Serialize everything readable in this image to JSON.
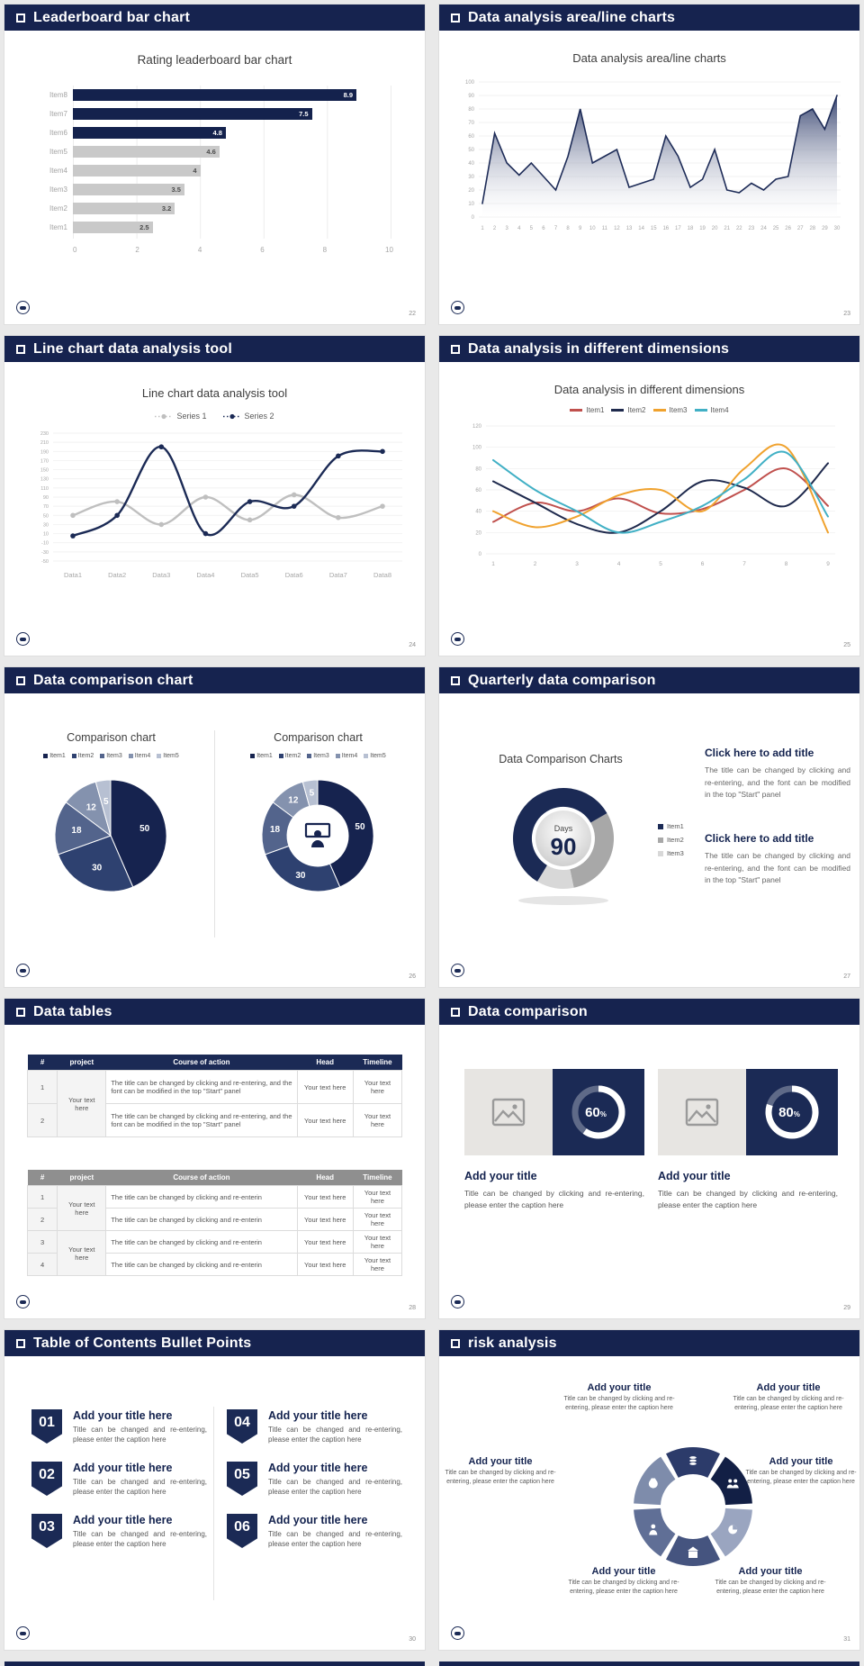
{
  "slides": {
    "s1": {
      "header": "Leaderboard bar chart",
      "page": "22",
      "chart_title": "Rating leaderboard bar chart"
    },
    "s2": {
      "header": "Data analysis area/line charts",
      "page": "23",
      "chart_title": "Data analysis area/line charts"
    },
    "s3": {
      "header": "Line chart data analysis tool",
      "page": "24",
      "chart_title": "Line chart data analysis tool"
    },
    "s4": {
      "header": "Data analysis in different dimensions",
      "page": "25",
      "chart_title": "Data analysis in different dimensions"
    },
    "s5": {
      "header": "Data comparison chart",
      "page": "26",
      "chart_title_left": "Comparison chart",
      "chart_title_right": "Comparison chart"
    },
    "s6": {
      "header": "Quarterly data comparison",
      "page": "27",
      "chart_label": "Data Comparison Charts",
      "days_label": "Days",
      "days_value": "90",
      "blocks": [
        {
          "title": "Click here to add title",
          "body": "The title can be changed by clicking and re-entering, and the font can be modified in the top \"Start\" panel"
        },
        {
          "title": "Click here to add title",
          "body": "The title can be changed by clicking and re-entering, and the font can be modified in the top \"Start\" panel"
        }
      ]
    },
    "s7": {
      "header": "Data tables",
      "page": "28",
      "tables": {
        "headers": [
          "#",
          "project",
          "Course of action",
          "Head",
          "Timeline"
        ],
        "your_text": "Your text here",
        "t1_course": "The title can be changed by clicking and re-entering, and the font can be modified in the top \"Start\" panel",
        "t2_course": "The title can be changed by clicking and re-enterin",
        "t1_row_nums": [
          "1",
          "2"
        ],
        "t2_row_nums": [
          "1",
          "2",
          "3",
          "4"
        ]
      }
    },
    "s8": {
      "header": "Data comparison",
      "page": "29",
      "card_title": "Add your title",
      "card_caption": "Title can be changed by clicking and re-entering, please enter the caption here",
      "cards": [
        {
          "pct": 60,
          "label": "60",
          "unit": "%"
        },
        {
          "pct": 80,
          "label": "80",
          "unit": "%"
        }
      ]
    },
    "s9": {
      "header": "Table of Contents Bullet Points",
      "page": "30",
      "item_title": "Add your title here",
      "item_caption": "Title can be changed and re-entering, please enter the caption here",
      "nums": [
        "01",
        "02",
        "03",
        "04",
        "05",
        "06"
      ]
    },
    "s10": {
      "header": "risk analysis",
      "page": "31",
      "item_title": "Add your title",
      "item_caption": "Title can be changed by clicking and re-entering, please enter the caption here",
      "icon_names": [
        "moneybag-icon",
        "coins-icon",
        "people-icon",
        "pie-icon",
        "building-icon",
        "person-icon"
      ]
    }
  },
  "chart_data": [
    {
      "id": "leaderboard",
      "type": "bar",
      "orientation": "horizontal",
      "title": "Rating leaderboard bar chart",
      "categories": [
        "Item1",
        "Item2",
        "Item3",
        "Item4",
        "Item5",
        "Item6",
        "Item7",
        "Item8"
      ],
      "values": [
        2.5,
        3.2,
        3.5,
        4,
        4.6,
        4.8,
        7.5,
        8.9
      ],
      "highlighted": [
        "Item6",
        "Item7",
        "Item8"
      ],
      "highlight_color": "#14224d",
      "bar_color": "#c9c9c9",
      "xlim": [
        0,
        10
      ],
      "xticks": [
        0,
        2,
        4,
        6,
        8,
        10
      ]
    },
    {
      "id": "area",
      "type": "area",
      "title": "Data analysis area/line charts",
      "x_start": 1,
      "x_end": 30,
      "ylim": [
        0,
        100
      ],
      "ystep": 10,
      "line_color": "#1d2b57",
      "values": [
        10,
        62,
        40,
        31,
        40,
        30,
        20,
        45,
        80,
        40,
        45,
        50,
        22,
        25,
        28,
        60,
        45,
        22,
        28,
        50,
        20,
        18,
        25,
        20,
        28,
        30,
        75,
        80,
        65,
        90
      ]
    },
    {
      "id": "line2",
      "type": "line",
      "title": "Line chart data analysis tool",
      "categories": [
        "Data1",
        "Data2",
        "Data3",
        "Data4",
        "Data5",
        "Data6",
        "Data7",
        "Data8"
      ],
      "ylim": [
        -50,
        230
      ],
      "ystep": 20,
      "series": [
        {
          "name": "Series 1",
          "color": "#bfbfbf",
          "values": [
            50,
            80,
            30,
            90,
            40,
            95,
            45,
            70
          ]
        },
        {
          "name": "Series 2",
          "color": "#1b2a55",
          "values": [
            5,
            50,
            200,
            10,
            80,
            70,
            180,
            190
          ]
        }
      ]
    },
    {
      "id": "line4",
      "type": "line",
      "title": "Data analysis in different dimensions",
      "x_labels": [
        "1",
        "2",
        "3",
        "4",
        "5",
        "6",
        "7",
        "8",
        "9"
      ],
      "ylim": [
        0,
        120
      ],
      "ystep": 20,
      "series": [
        {
          "name": "Item1",
          "color": "#c0504d",
          "values": [
            30,
            48,
            40,
            52,
            38,
            42,
            60,
            80,
            45
          ]
        },
        {
          "name": "Item2",
          "color": "#1f2a4d",
          "values": [
            68,
            48,
            28,
            20,
            40,
            68,
            62,
            45,
            85
          ]
        },
        {
          "name": "Item3",
          "color": "#f0a22e",
          "values": [
            40,
            25,
            35,
            55,
            60,
            40,
            80,
            100,
            20
          ]
        },
        {
          "name": "Item4",
          "color": "#41b0c5",
          "values": [
            88,
            60,
            40,
            20,
            30,
            45,
            70,
            95,
            35
          ]
        }
      ]
    },
    {
      "id": "pie",
      "type": "pie",
      "title": "Comparison chart",
      "labels": [
        "Item1",
        "Item2",
        "Item3",
        "Item4",
        "Item5"
      ],
      "values": [
        50,
        30,
        18,
        12,
        5
      ],
      "colors": [
        "#16234f",
        "#2e4170",
        "#53648c",
        "#8492ae",
        "#b7c0d2"
      ]
    },
    {
      "id": "donut",
      "type": "pie",
      "donut": true,
      "title": "Comparison chart",
      "labels": [
        "Item1",
        "Item2",
        "Item3",
        "Item4",
        "Item5"
      ],
      "values": [
        50,
        30,
        18,
        12,
        5
      ],
      "colors": [
        "#16234f",
        "#2e4170",
        "#53648c",
        "#8492ae",
        "#b7c0d2"
      ]
    },
    {
      "id": "donut90",
      "type": "pie",
      "donut": true,
      "title": "Data Comparison Charts",
      "center_title": "Days",
      "center_value": "90",
      "labels": [
        "Item1",
        "Item2",
        "Item3"
      ],
      "values": [
        58,
        30,
        12
      ],
      "colors": [
        "#1b2a55",
        "#a8a8a8",
        "#d8d8d8"
      ]
    },
    {
      "id": "rings",
      "type": "pie",
      "donut": true,
      "title": "Data comparison progress",
      "values": [
        60,
        80
      ],
      "unit": "%",
      "ring_color": "#ffffff"
    },
    {
      "id": "wheel",
      "type": "pie",
      "donut": true,
      "title": "risk analysis wheel",
      "segments": 6,
      "colors": [
        "#7e8cab",
        "#2c3b6a",
        "#121f45",
        "#9aa5c0",
        "#45547f",
        "#606f96"
      ]
    }
  ]
}
